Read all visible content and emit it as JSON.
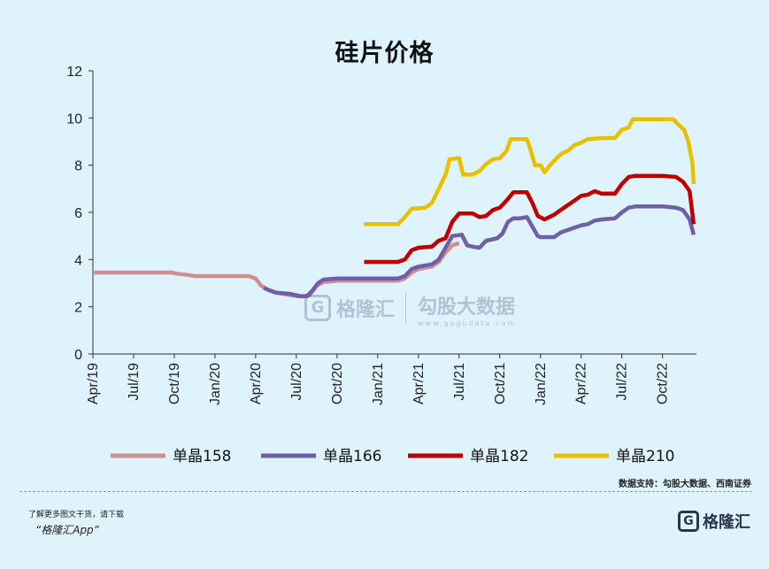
{
  "chart_data": {
    "type": "line",
    "title": "硅片价格",
    "xlabel": "",
    "ylabel": "",
    "ylim": [
      0,
      12
    ],
    "yticks": [
      "0",
      "2",
      "4",
      "6",
      "8",
      "10",
      "12"
    ],
    "xlim": [
      0,
      44.5
    ],
    "xticks": [
      {
        "label": "Apr/19",
        "x": 0
      },
      {
        "label": "Jul/19",
        "x": 3
      },
      {
        "label": "Oct/19",
        "x": 6
      },
      {
        "label": "Jan/20",
        "x": 9
      },
      {
        "label": "Apr/20",
        "x": 12
      },
      {
        "label": "Jul/20",
        "x": 15
      },
      {
        "label": "Oct/20",
        "x": 18
      },
      {
        "label": "Jan/21",
        "x": 21
      },
      {
        "label": "Apr/21",
        "x": 24
      },
      {
        "label": "Jul/21",
        "x": 27
      },
      {
        "label": "Oct/21",
        "x": 30
      },
      {
        "label": "Jan/22",
        "x": 33
      },
      {
        "label": "Apr/22",
        "x": 36
      },
      {
        "label": "Jul/22",
        "x": 39
      },
      {
        "label": "Oct/22",
        "x": 42
      }
    ],
    "grid": false,
    "legend_position": "bottom",
    "series": [
      {
        "name": "单晶158",
        "color": "#cd8f8f",
        "points": [
          [
            0,
            3.45
          ],
          [
            3,
            3.45
          ],
          [
            5.8,
            3.45
          ],
          [
            6.2,
            3.4
          ],
          [
            7,
            3.35
          ],
          [
            7.5,
            3.3
          ],
          [
            9,
            3.3
          ],
          [
            11.5,
            3.3
          ],
          [
            12,
            3.2
          ],
          [
            12.4,
            2.9
          ],
          [
            12.8,
            2.75
          ],
          [
            13.5,
            2.6
          ],
          [
            14.5,
            2.5
          ],
          [
            15,
            2.45
          ],
          [
            15.5,
            2.45
          ],
          [
            16,
            2.5
          ],
          [
            16.5,
            2.9
          ],
          [
            17,
            3.05
          ],
          [
            18,
            3.1
          ],
          [
            19.5,
            3.1
          ],
          [
            21,
            3.1
          ],
          [
            22.5,
            3.1
          ],
          [
            23,
            3.2
          ],
          [
            23.5,
            3.45
          ],
          [
            24,
            3.6
          ],
          [
            25,
            3.7
          ],
          [
            25.5,
            3.9
          ],
          [
            26,
            4.3
          ],
          [
            26.5,
            4.6
          ],
          [
            27,
            4.7
          ]
        ]
      },
      {
        "name": "单晶166",
        "color": "#6f5fa8",
        "points": [
          [
            12.6,
            2.8
          ],
          [
            13,
            2.7
          ],
          [
            13.5,
            2.6
          ],
          [
            14.5,
            2.55
          ],
          [
            15.3,
            2.45
          ],
          [
            15.8,
            2.45
          ],
          [
            16.2,
            2.7
          ],
          [
            16.6,
            3.0
          ],
          [
            17,
            3.15
          ],
          [
            18,
            3.2
          ],
          [
            19.5,
            3.2
          ],
          [
            21,
            3.2
          ],
          [
            22.5,
            3.2
          ],
          [
            23,
            3.3
          ],
          [
            23.5,
            3.6
          ],
          [
            24,
            3.7
          ],
          [
            25,
            3.8
          ],
          [
            25.5,
            4.0
          ],
          [
            26,
            4.5
          ],
          [
            26.5,
            5.0
          ],
          [
            27.2,
            5.05
          ],
          [
            27.6,
            4.6
          ],
          [
            28,
            4.55
          ],
          [
            28.5,
            4.5
          ],
          [
            29,
            4.8
          ],
          [
            29.8,
            4.9
          ],
          [
            30.2,
            5.1
          ],
          [
            30.6,
            5.6
          ],
          [
            31,
            5.75
          ],
          [
            31.5,
            5.75
          ],
          [
            32,
            5.8
          ],
          [
            32.4,
            5.4
          ],
          [
            32.8,
            5.0
          ],
          [
            33,
            4.95
          ],
          [
            34,
            4.95
          ],
          [
            34.5,
            5.15
          ],
          [
            35,
            5.25
          ],
          [
            35.5,
            5.35
          ],
          [
            36,
            5.45
          ],
          [
            36.5,
            5.5
          ],
          [
            37,
            5.65
          ],
          [
            37.5,
            5.7
          ],
          [
            38.5,
            5.75
          ],
          [
            39,
            6.0
          ],
          [
            39.5,
            6.2
          ],
          [
            40,
            6.25
          ],
          [
            41,
            6.25
          ],
          [
            42,
            6.25
          ],
          [
            43,
            6.2
          ],
          [
            43.5,
            6.1
          ],
          [
            44,
            5.7
          ],
          [
            44.3,
            5.05
          ]
        ]
      },
      {
        "name": "单晶182",
        "color": "#c00000",
        "points": [
          [
            20,
            3.9
          ],
          [
            22.5,
            3.9
          ],
          [
            23,
            4.0
          ],
          [
            23.5,
            4.4
          ],
          [
            24,
            4.5
          ],
          [
            25,
            4.55
          ],
          [
            25.5,
            4.8
          ],
          [
            26,
            4.9
          ],
          [
            26.5,
            5.6
          ],
          [
            27,
            5.95
          ],
          [
            28,
            5.95
          ],
          [
            28.5,
            5.8
          ],
          [
            29,
            5.85
          ],
          [
            29.5,
            6.1
          ],
          [
            30,
            6.2
          ],
          [
            30.5,
            6.5
          ],
          [
            31,
            6.85
          ],
          [
            32,
            6.85
          ],
          [
            32.4,
            6.4
          ],
          [
            32.8,
            5.85
          ],
          [
            33.3,
            5.7
          ],
          [
            34,
            5.9
          ],
          [
            34.5,
            6.1
          ],
          [
            35,
            6.3
          ],
          [
            35.5,
            6.5
          ],
          [
            36,
            6.7
          ],
          [
            36.5,
            6.75
          ],
          [
            37,
            6.9
          ],
          [
            37.5,
            6.8
          ],
          [
            38.5,
            6.8
          ],
          [
            39,
            7.2
          ],
          [
            39.5,
            7.5
          ],
          [
            40,
            7.55
          ],
          [
            41,
            7.55
          ],
          [
            42,
            7.55
          ],
          [
            43,
            7.5
          ],
          [
            43.5,
            7.3
          ],
          [
            44,
            6.9
          ],
          [
            44.3,
            5.5
          ]
        ]
      },
      {
        "name": "单晶210",
        "color": "#e8c000",
        "points": [
          [
            20,
            5.5
          ],
          [
            22.5,
            5.5
          ],
          [
            23,
            5.8
          ],
          [
            23.5,
            6.15
          ],
          [
            24.5,
            6.2
          ],
          [
            25,
            6.4
          ],
          [
            25.5,
            7.0
          ],
          [
            26,
            7.6
          ],
          [
            26.3,
            8.25
          ],
          [
            27,
            8.3
          ],
          [
            27.3,
            7.6
          ],
          [
            28,
            7.6
          ],
          [
            28.5,
            7.75
          ],
          [
            29,
            8.05
          ],
          [
            29.5,
            8.25
          ],
          [
            30,
            8.3
          ],
          [
            30.5,
            8.6
          ],
          [
            30.8,
            9.1
          ],
          [
            32,
            9.1
          ],
          [
            32.3,
            8.6
          ],
          [
            32.6,
            8.0
          ],
          [
            33,
            8.0
          ],
          [
            33.3,
            7.7
          ],
          [
            33.7,
            8.0
          ],
          [
            34.2,
            8.3
          ],
          [
            34.6,
            8.5
          ],
          [
            35,
            8.6
          ],
          [
            35.5,
            8.85
          ],
          [
            36,
            8.95
          ],
          [
            36.5,
            9.1
          ],
          [
            37.5,
            9.15
          ],
          [
            38.5,
            9.15
          ],
          [
            39,
            9.5
          ],
          [
            39.5,
            9.6
          ],
          [
            39.8,
            9.95
          ],
          [
            40.5,
            9.95
          ],
          [
            42,
            9.95
          ],
          [
            42.8,
            9.95
          ],
          [
            43.2,
            9.7
          ],
          [
            43.6,
            9.5
          ],
          [
            43.9,
            9.0
          ],
          [
            44.2,
            8.1
          ],
          [
            44.3,
            7.2
          ]
        ]
      }
    ]
  },
  "source_note": "数据支持：勾股大数据、西南证券",
  "footer": {
    "note": "了解更多图文干货，请下载",
    "app": "“格隆汇App”"
  },
  "watermark": {
    "left_text": "格隆汇",
    "left_logo": "G",
    "right_text": "勾股大数据",
    "right_sub": "www.gogudata.com"
  },
  "corner_logo": {
    "logo": "G",
    "text": "格隆汇"
  }
}
